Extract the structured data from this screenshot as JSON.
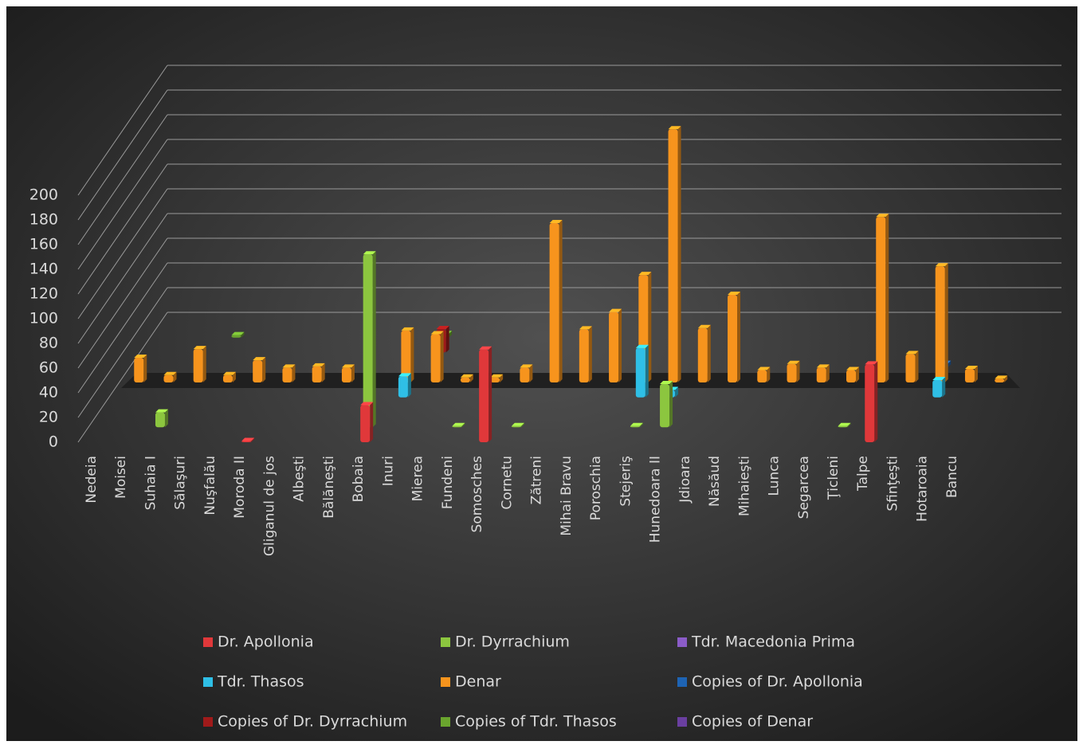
{
  "chart_data": {
    "type": "bar3d",
    "categories": [
      "Nedeia",
      "Moisei",
      "Suhaia I",
      "Sălaşuri",
      "Nuşfalău",
      "Moroda II",
      "Gliganul de jos",
      "Albeşti",
      "Bălăneşti",
      "Bobaia",
      "Inuri",
      "Mierea",
      "Fundeni",
      "Somosches",
      "Cornetu",
      "Zătreni",
      "Mihai Bravu",
      "Poroschia",
      "Stejeriş",
      "Hunedoara II",
      "Jdioara",
      "Năsăud",
      "Mihaieşti",
      "Lunca",
      "Segarcea",
      "Ţicleni",
      "Talpe",
      "Sfinţeşti",
      "Hotaroaia",
      "Bancu",
      null
    ],
    "series": [
      {
        "name": "Dr. Apollonia",
        "color": "#e0383a",
        "values": [
          null,
          null,
          null,
          null,
          null,
          1,
          null,
          null,
          null,
          30,
          null,
          null,
          null,
          75,
          null,
          null,
          null,
          null,
          null,
          null,
          null,
          null,
          null,
          null,
          null,
          null,
          63,
          null,
          null,
          null,
          null
        ]
      },
      {
        "name": "Dr. Dyrrachium",
        "color": "#8cc63f",
        "values": [
          null,
          null,
          12,
          null,
          null,
          null,
          null,
          null,
          null,
          140,
          null,
          null,
          1,
          null,
          1,
          null,
          null,
          null,
          1,
          35,
          null,
          null,
          null,
          null,
          null,
          1,
          null,
          null,
          null,
          null,
          null
        ]
      },
      {
        "name": "Tdr. Macedonia Prima",
        "color": "#8b5cc8",
        "values": [
          null,
          null,
          null,
          null,
          null,
          null,
          null,
          null,
          null,
          null,
          null,
          null,
          null,
          null,
          null,
          null,
          null,
          null,
          null,
          null,
          null,
          null,
          null,
          null,
          null,
          null,
          null,
          null,
          null,
          null,
          null
        ]
      },
      {
        "name": "Tdr. Thasos",
        "color": "#2fbfe6",
        "values": [
          null,
          null,
          null,
          null,
          null,
          null,
          null,
          null,
          null,
          null,
          17,
          null,
          null,
          null,
          null,
          null,
          null,
          null,
          40,
          6,
          null,
          null,
          null,
          null,
          null,
          null,
          null,
          null,
          14,
          null,
          null
        ]
      },
      {
        "name": "Denar",
        "color": "#f7941d",
        "values": [
          null,
          20,
          6,
          27,
          6,
          18,
          12,
          13,
          12,
          null,
          42,
          39,
          4,
          4,
          12,
          129,
          43,
          57,
          87,
          205,
          44,
          71,
          10,
          15,
          12,
          10,
          134,
          23,
          94,
          11,
          3
        ]
      },
      {
        "name": "Copies of Dr. Apollonia",
        "color": "#1e64b4",
        "values": [
          null,
          null,
          null,
          null,
          null,
          null,
          null,
          null,
          null,
          null,
          null,
          null,
          null,
          null,
          null,
          null,
          null,
          null,
          null,
          null,
          null,
          null,
          null,
          null,
          null,
          null,
          null,
          null,
          3,
          null,
          null
        ]
      },
      {
        "name": "Copies of Dr. Dyrrachium",
        "color": "#a01a1a",
        "values": [
          null,
          null,
          null,
          null,
          null,
          null,
          null,
          null,
          null,
          null,
          null,
          19,
          null,
          null,
          null,
          null,
          null,
          null,
          null,
          null,
          null,
          null,
          null,
          null,
          null,
          null,
          null,
          null,
          null,
          null,
          null
        ]
      },
      {
        "name": "Copies of Tdr. Thasos",
        "color": "#6aa52e",
        "values": [
          null,
          null,
          null,
          null,
          2,
          null,
          null,
          null,
          null,
          null,
          null,
          3,
          null,
          null,
          null,
          null,
          null,
          null,
          null,
          null,
          null,
          null,
          null,
          null,
          null,
          null,
          null,
          null,
          null,
          null,
          null
        ]
      },
      {
        "name": "Copies of  Denar",
        "color": "#6a3fa0",
        "values": [
          null,
          null,
          null,
          null,
          null,
          null,
          null,
          null,
          null,
          null,
          null,
          null,
          null,
          null,
          null,
          null,
          null,
          null,
          null,
          null,
          null,
          null,
          null,
          null,
          null,
          null,
          null,
          null,
          null,
          null,
          null
        ]
      }
    ],
    "ylim": [
      0,
      200
    ],
    "yticks": [
      0,
      20,
      40,
      60,
      80,
      100,
      120,
      140,
      160,
      180,
      200
    ],
    "grid": true
  }
}
